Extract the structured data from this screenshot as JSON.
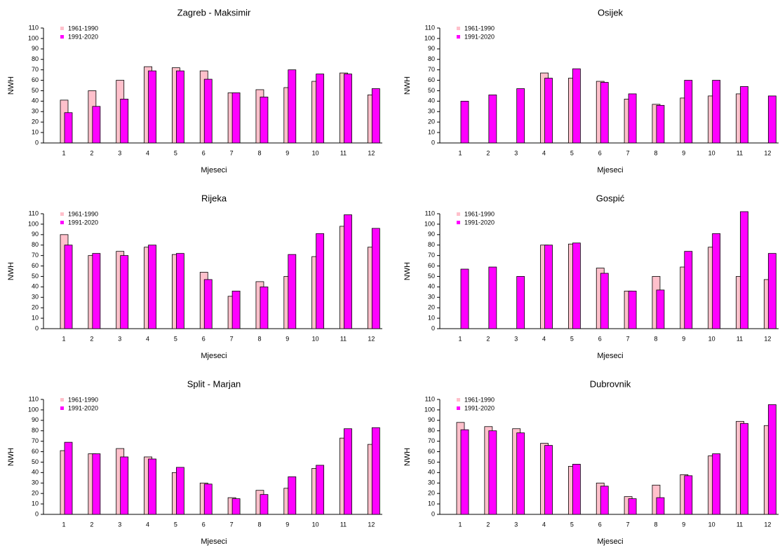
{
  "chart_data": [
    {
      "type": "bar",
      "title": "Zagreb - Maksimir",
      "xlabel": "Mjeseci",
      "ylabel": "NWH",
      "legend": "topleft",
      "categories": [
        "1",
        "2",
        "3",
        "4",
        "5",
        "6",
        "7",
        "8",
        "9",
        "10",
        "11",
        "12"
      ],
      "series": [
        {
          "name": "1961-1990",
          "color": "#ffc0cb",
          "values": [
            41,
            50,
            60,
            73,
            72,
            69,
            48,
            51,
            53,
            59,
            67,
            46
          ]
        },
        {
          "name": "1991-2020",
          "color": "#ff00ff",
          "values": [
            29,
            35,
            42,
            69,
            69,
            61,
            48,
            44,
            70,
            66,
            66,
            52
          ]
        }
      ],
      "ylim": [
        0,
        110
      ],
      "yticks": [
        0,
        10,
        20,
        30,
        40,
        50,
        60,
        70,
        80,
        90,
        100,
        110
      ]
    },
    {
      "type": "bar",
      "title": "Osijek",
      "xlabel": "Mjeseci",
      "ylabel": "NWH",
      "legend": "topleft",
      "categories": [
        "1",
        "2",
        "3",
        "4",
        "5",
        "6",
        "7",
        "8",
        "9",
        "10",
        "11",
        "12"
      ],
      "series": [
        {
          "name": "1961-1990",
          "color": "#ffc0cb",
          "values": [
            null,
            null,
            null,
            67,
            62,
            59,
            42,
            37,
            43,
            45,
            47,
            null
          ]
        },
        {
          "name": "1991-2020",
          "color": "#ff00ff",
          "values": [
            40,
            46,
            52,
            62,
            71,
            58,
            47,
            36,
            60,
            60,
            54,
            45
          ]
        }
      ],
      "ylim": [
        0,
        110
      ],
      "yticks": [
        0,
        10,
        20,
        30,
        40,
        50,
        60,
        70,
        80,
        90,
        100,
        110
      ]
    },
    {
      "type": "bar",
      "title": "Rijeka",
      "xlabel": "Mjeseci",
      "ylabel": "NWH",
      "legend": "topleft",
      "categories": [
        "1",
        "2",
        "3",
        "4",
        "5",
        "6",
        "7",
        "8",
        "9",
        "10",
        "11",
        "12"
      ],
      "series": [
        {
          "name": "1961-1990",
          "color": "#ffc0cb",
          "values": [
            90,
            70,
            74,
            78,
            71,
            54,
            31,
            45,
            50,
            69,
            98,
            78
          ]
        },
        {
          "name": "1991-2020",
          "color": "#ff00ff",
          "values": [
            80,
            72,
            70,
            80,
            72,
            47,
            36,
            40,
            71,
            91,
            109,
            96
          ]
        }
      ],
      "ylim": [
        0,
        110
      ],
      "yticks": [
        0,
        10,
        20,
        30,
        40,
        50,
        60,
        70,
        80,
        90,
        100,
        110
      ]
    },
    {
      "type": "bar",
      "title": "Gospić",
      "xlabel": "Mjeseci",
      "ylabel": "NWH",
      "legend": "topleft",
      "categories": [
        "1",
        "2",
        "3",
        "4",
        "5",
        "6",
        "7",
        "8",
        "9",
        "10",
        "11",
        "12"
      ],
      "series": [
        {
          "name": "1961-1990",
          "color": "#ffc0cb",
          "values": [
            null,
            null,
            null,
            80,
            81,
            58,
            36,
            50,
            59,
            78,
            50,
            47
          ]
        },
        {
          "name": "1991-2020",
          "color": "#ff00ff",
          "values": [
            57,
            59,
            50,
            80,
            82,
            53,
            36,
            37,
            74,
            91,
            112,
            72
          ]
        }
      ],
      "ylim": [
        0,
        110
      ],
      "yticks": [
        0,
        10,
        20,
        30,
        40,
        50,
        60,
        70,
        80,
        90,
        100,
        110
      ]
    },
    {
      "type": "bar",
      "title": "Split - Marjan",
      "xlabel": "Mjeseci",
      "ylabel": "NWH",
      "legend": "topleft",
      "categories": [
        "1",
        "2",
        "3",
        "4",
        "5",
        "6",
        "7",
        "8",
        "9",
        "10",
        "11",
        "12"
      ],
      "series": [
        {
          "name": "1961-1990",
          "color": "#ffc0cb",
          "values": [
            61,
            58,
            63,
            55,
            40,
            30,
            16,
            23,
            25,
            44,
            73,
            67
          ]
        },
        {
          "name": "1991-2020",
          "color": "#ff00ff",
          "values": [
            69,
            58,
            55,
            53,
            45,
            29,
            15,
            19,
            36,
            47,
            82,
            83
          ]
        }
      ],
      "ylim": [
        0,
        110
      ],
      "yticks": [
        0,
        10,
        20,
        30,
        40,
        50,
        60,
        70,
        80,
        90,
        100,
        110
      ]
    },
    {
      "type": "bar",
      "title": "Dubrovnik",
      "xlabel": "Mjeseci",
      "ylabel": "NWH",
      "legend": "topleft",
      "categories": [
        "1",
        "2",
        "3",
        "4",
        "5",
        "6",
        "7",
        "8",
        "9",
        "10",
        "11",
        "12"
      ],
      "series": [
        {
          "name": "1961-1990",
          "color": "#ffc0cb",
          "values": [
            88,
            84,
            82,
            68,
            46,
            30,
            17,
            28,
            38,
            56,
            89,
            85
          ]
        },
        {
          "name": "1991-2020",
          "color": "#ff00ff",
          "values": [
            81,
            80,
            78,
            66,
            48,
            27,
            15,
            16,
            37,
            58,
            87,
            105
          ]
        }
      ],
      "ylim": [
        0,
        110
      ],
      "yticks": [
        0,
        10,
        20,
        30,
        40,
        50,
        60,
        70,
        80,
        90,
        100,
        110
      ]
    }
  ]
}
